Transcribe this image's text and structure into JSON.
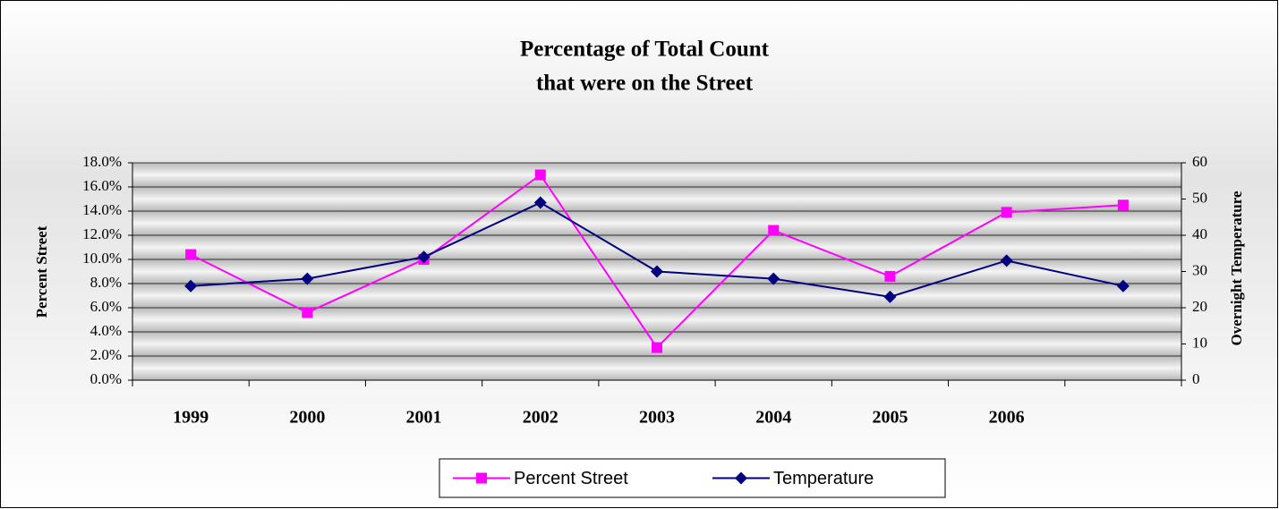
{
  "chart_data": {
    "type": "line",
    "title": [
      "Percentage of Total Count",
      "that were on the Street"
    ],
    "ylabel": "Percent Street",
    "y2label": "Overnight Temperature",
    "categories": [
      "1999",
      "2000",
      "2001",
      "2002",
      "2003",
      "2004",
      "2005",
      "2006",
      null
    ],
    "series": [
      {
        "name": "Percent Street",
        "color": "#ff00ff",
        "marker": "square",
        "values": [
          10.4,
          5.6,
          10.0,
          17.0,
          2.7,
          12.4,
          8.6,
          13.9,
          14.5
        ]
      },
      {
        "name": "Temperature",
        "color": "#000080",
        "marker": "diamond",
        "axis": "y2",
        "values": [
          26,
          28,
          34,
          49,
          30,
          28,
          23,
          33,
          26
        ]
      }
    ],
    "ylim": [
      0,
      18
    ],
    "yticks": [
      {
        "value": 0,
        "label": "0.0%"
      },
      {
        "value": 2,
        "label": "2.0%"
      },
      {
        "value": 4,
        "label": "4.0%"
      },
      {
        "value": 6,
        "label": "6.0%"
      },
      {
        "value": 8,
        "label": "8.0%"
      },
      {
        "value": 10,
        "label": "10.0%"
      },
      {
        "value": 12,
        "label": "12.0%"
      },
      {
        "value": 14,
        "label": "14.0%"
      },
      {
        "value": 16,
        "label": "16.0%"
      },
      {
        "value": 18,
        "label": "18.0%"
      }
    ],
    "y2lim": [
      0,
      60
    ],
    "y2ticks": [
      0,
      10,
      20,
      30,
      40,
      50,
      60
    ],
    "grid": true,
    "legend": "bottom"
  }
}
